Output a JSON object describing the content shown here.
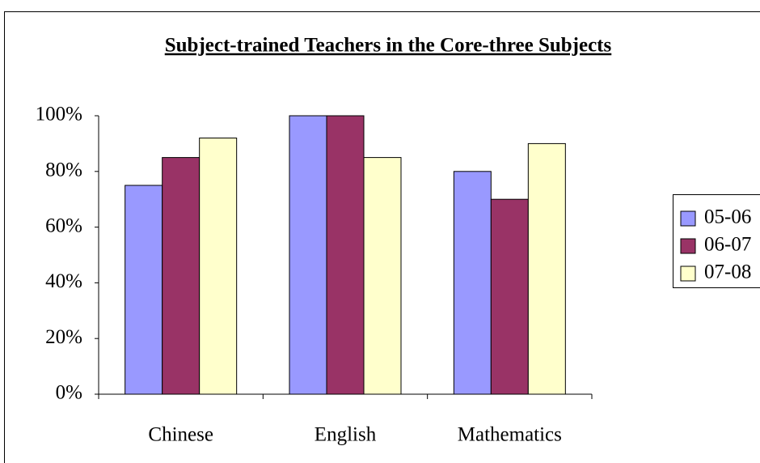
{
  "chart_data": {
    "type": "bar",
    "title": "Subject-trained Teachers in the Core-three Subjects",
    "categories": [
      "Chinese",
      "English",
      "Mathematics"
    ],
    "series": [
      {
        "name": "05-06",
        "color": "#9999ff",
        "values": [
          75,
          100,
          80
        ]
      },
      {
        "name": "06-07",
        "color": "#993366",
        "values": [
          85,
          100,
          70
        ]
      },
      {
        "name": "07-08",
        "color": "#ffffcc",
        "values": [
          92,
          85,
          90
        ]
      }
    ],
    "ylim": [
      0,
      100
    ],
    "yticks": [
      {
        "value": 0,
        "label": "0%"
      },
      {
        "value": 20,
        "label": "20%"
      },
      {
        "value": 40,
        "label": "40%"
      },
      {
        "value": 60,
        "label": "60%"
      },
      {
        "value": 80,
        "label": "80%"
      },
      {
        "value": 100,
        "label": "100%"
      }
    ],
    "grid": false,
    "legend": "right"
  }
}
